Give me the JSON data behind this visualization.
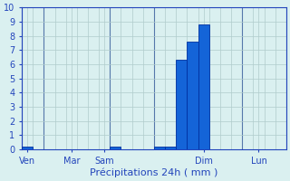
{
  "bar_values": [
    0.2,
    0.0,
    0.0,
    0.0,
    0.0,
    0.0,
    0.0,
    0.0,
    0.2,
    0.0,
    0.0,
    0.0,
    0.2,
    0.2,
    6.3,
    7.6,
    8.8,
    0.0,
    0.0,
    0.0,
    0.0,
    0.0,
    0.0,
    0.0
  ],
  "n_bars": 24,
  "x_tick_positions": [
    0.5,
    4.5,
    7.5,
    16.5,
    21.5
  ],
  "x_tick_labels": [
    "Ven",
    "Mar",
    "Sam",
    "Dim",
    "Lun"
  ],
  "xlabel": "Précipitations 24h ( mm )",
  "ylim": [
    0,
    10
  ],
  "yticks": [
    0,
    1,
    2,
    3,
    4,
    5,
    6,
    7,
    8,
    9,
    10
  ],
  "bar_color": "#1464d8",
  "bar_edge_color": "#0030a0",
  "background_color": "#daf0f0",
  "grid_color": "#b0cccc",
  "xlabel_color": "#2244bb",
  "tick_color": "#2244bb",
  "axis_line_color": "#2244bb",
  "day_line_color": "#5577aa"
}
